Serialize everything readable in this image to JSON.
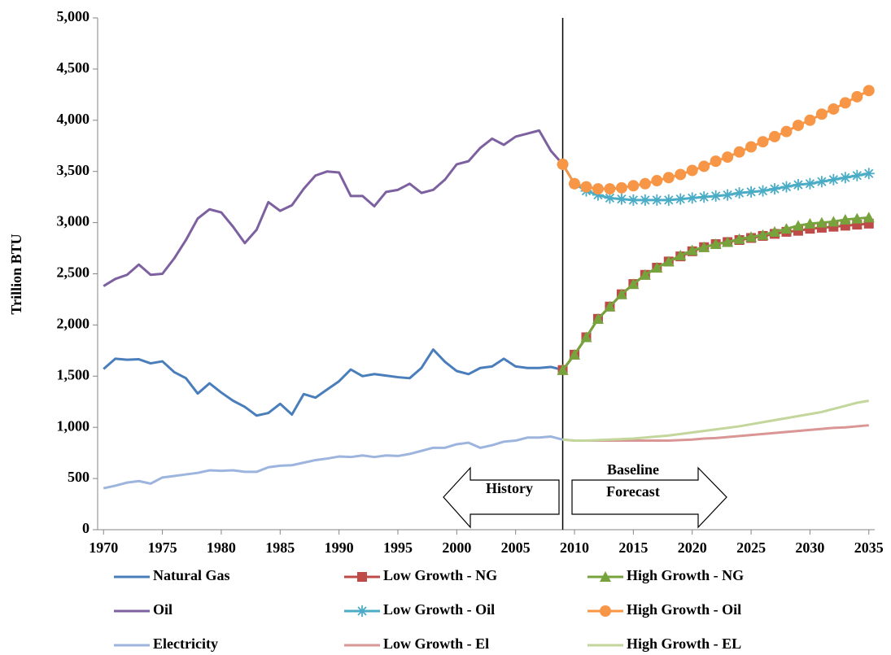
{
  "chart_data": {
    "type": "line",
    "y_label": "Trillion BTU",
    "xlim": [
      1969.5,
      2035.5
    ],
    "xticks": [
      1970,
      1975,
      1980,
      1985,
      1990,
      1995,
      2000,
      2005,
      2010,
      2015,
      2020,
      2025,
      2030,
      2035
    ],
    "ylim": [
      0,
      5000
    ],
    "yticks": [
      0,
      500,
      {
        "value": 1000,
        "label": "1,000"
      },
      {
        "value": 1500,
        "label": "1,500"
      },
      {
        "value": 2000,
        "label": "2,000"
      },
      {
        "value": 2500,
        "label": "2,500"
      },
      {
        "value": 3000,
        "label": "3,000"
      },
      {
        "value": 3500,
        "label": "3,500"
      },
      {
        "value": 4000,
        "label": "4,000"
      },
      {
        "value": 4500,
        "label": "4,500"
      },
      {
        "value": 5000,
        "label": "5,000"
      }
    ],
    "divider_x": 2009,
    "history_label": "History",
    "forecast_label": [
      "Baseline",
      "Forecast"
    ],
    "series": [
      {
        "name": "Natural Gas",
        "color": "#4a7ebb",
        "marker": "none",
        "x": [
          1970,
          1971,
          1972,
          1973,
          1974,
          1975,
          1976,
          1977,
          1978,
          1979,
          1980,
          1981,
          1982,
          1983,
          1984,
          1985,
          1986,
          1987,
          1988,
          1989,
          1990,
          1991,
          1992,
          1993,
          1994,
          1995,
          1996,
          1997,
          1998,
          1999,
          2000,
          2001,
          2002,
          2003,
          2004,
          2005,
          2006,
          2007,
          2008,
          2009
        ],
        "values": [
          1570,
          1670,
          1660,
          1665,
          1625,
          1645,
          1540,
          1480,
          1330,
          1430,
          1340,
          1260,
          1200,
          1115,
          1140,
          1230,
          1125,
          1325,
          1290,
          1370,
          1450,
          1565,
          1500,
          1520,
          1505,
          1490,
          1480,
          1580,
          1760,
          1640,
          1550,
          1520,
          1580,
          1595,
          1670,
          1595,
          1580,
          1580,
          1590,
          1560
        ]
      },
      {
        "name": "Low Growth - NG",
        "color": "#be4b48",
        "marker": "square",
        "x": [
          2009,
          2010,
          2011,
          2012,
          2013,
          2014,
          2015,
          2016,
          2017,
          2018,
          2019,
          2020,
          2021,
          2022,
          2023,
          2024,
          2025,
          2026,
          2027,
          2028,
          2029,
          2030,
          2031,
          2032,
          2033,
          2034,
          2035
        ],
        "values": [
          1560,
          1710,
          1880,
          2060,
          2180,
          2300,
          2400,
          2490,
          2560,
          2620,
          2670,
          2720,
          2760,
          2790,
          2810,
          2830,
          2850,
          2870,
          2890,
          2910,
          2920,
          2940,
          2950,
          2960,
          2970,
          2980,
          2990
        ]
      },
      {
        "name": "High Growth - NG",
        "color": "#77a33c",
        "marker": "triangle",
        "x": [
          2009,
          2010,
          2011,
          2012,
          2013,
          2014,
          2015,
          2016,
          2017,
          2018,
          2019,
          2020,
          2021,
          2022,
          2023,
          2024,
          2025,
          2026,
          2027,
          2028,
          2029,
          2030,
          2031,
          2032,
          2033,
          2034,
          2035
        ],
        "values": [
          1560,
          1710,
          1880,
          2060,
          2180,
          2300,
          2400,
          2490,
          2560,
          2620,
          2680,
          2730,
          2760,
          2790,
          2810,
          2840,
          2860,
          2880,
          2910,
          2940,
          2970,
          2990,
          3000,
          3010,
          3030,
          3040,
          3050
        ]
      },
      {
        "name": "Oil",
        "color": "#7d60a0",
        "marker": "none",
        "x": [
          1970,
          1971,
          1972,
          1973,
          1974,
          1975,
          1976,
          1977,
          1978,
          1979,
          1980,
          1981,
          1982,
          1983,
          1984,
          1985,
          1986,
          1987,
          1988,
          1989,
          1990,
          1991,
          1992,
          1993,
          1994,
          1995,
          1996,
          1997,
          1998,
          1999,
          2000,
          2001,
          2002,
          2003,
          2004,
          2005,
          2006,
          2007,
          2008,
          2009
        ],
        "values": [
          2380,
          2450,
          2490,
          2590,
          2490,
          2500,
          2650,
          2830,
          3040,
          3130,
          3100,
          2960,
          2800,
          2930,
          3200,
          3115,
          3170,
          3330,
          3460,
          3500,
          3490,
          3260,
          3260,
          3160,
          3300,
          3320,
          3380,
          3290,
          3320,
          3420,
          3570,
          3600,
          3730,
          3820,
          3760,
          3840,
          3870,
          3900,
          3700,
          3570
        ]
      },
      {
        "name": "Low Growth - Oil",
        "color": "#4bacc6",
        "marker": "asterisk",
        "x": [
          2009,
          2010,
          2011,
          2012,
          2013,
          2014,
          2015,
          2016,
          2017,
          2018,
          2019,
          2020,
          2021,
          2022,
          2023,
          2024,
          2025,
          2026,
          2027,
          2028,
          2029,
          2030,
          2031,
          2032,
          2033,
          2034,
          2035
        ],
        "values": [
          3570,
          3380,
          3310,
          3270,
          3240,
          3230,
          3220,
          3220,
          3220,
          3220,
          3230,
          3240,
          3250,
          3260,
          3270,
          3290,
          3300,
          3310,
          3330,
          3350,
          3370,
          3380,
          3400,
          3420,
          3440,
          3460,
          3480
        ]
      },
      {
        "name": "High Growth - Oil",
        "color": "#f79646",
        "marker": "circle",
        "x": [
          2009,
          2010,
          2011,
          2012,
          2013,
          2014,
          2015,
          2016,
          2017,
          2018,
          2019,
          2020,
          2021,
          2022,
          2023,
          2024,
          2025,
          2026,
          2027,
          2028,
          2029,
          2030,
          2031,
          2032,
          2033,
          2034,
          2035
        ],
        "values": [
          3570,
          3380,
          3350,
          3330,
          3330,
          3340,
          3360,
          3380,
          3410,
          3440,
          3470,
          3510,
          3550,
          3600,
          3640,
          3690,
          3740,
          3790,
          3840,
          3890,
          3950,
          4000,
          4060,
          4110,
          4170,
          4230,
          4290
        ]
      },
      {
        "name": "Electricity",
        "color": "#9db5de",
        "marker": "none",
        "x": [
          1970,
          1971,
          1972,
          1973,
          1974,
          1975,
          1976,
          1977,
          1978,
          1979,
          1980,
          1981,
          1982,
          1983,
          1984,
          1985,
          1986,
          1987,
          1988,
          1989,
          1990,
          1991,
          1992,
          1993,
          1994,
          1995,
          1996,
          1997,
          1998,
          1999,
          2000,
          2001,
          2002,
          2003,
          2004,
          2005,
          2006,
          2007,
          2008,
          2009
        ],
        "values": [
          405,
          430,
          460,
          475,
          450,
          510,
          525,
          540,
          555,
          580,
          575,
          580,
          565,
          565,
          610,
          625,
          630,
          655,
          680,
          695,
          715,
          710,
          725,
          710,
          725,
          720,
          740,
          770,
          800,
          800,
          835,
          850,
          800,
          825,
          860,
          870,
          900,
          900,
          910,
          880
        ]
      },
      {
        "name": "Low Growth - El",
        "color": "#d99694",
        "marker": "none",
        "x": [
          2009,
          2010,
          2011,
          2012,
          2013,
          2014,
          2015,
          2016,
          2017,
          2018,
          2019,
          2020,
          2021,
          2022,
          2023,
          2024,
          2025,
          2026,
          2027,
          2028,
          2029,
          2030,
          2031,
          2032,
          2033,
          2034,
          2035
        ],
        "values": [
          880,
          870,
          870,
          870,
          870,
          870,
          870,
          870,
          870,
          870,
          875,
          880,
          890,
          895,
          905,
          915,
          925,
          935,
          945,
          955,
          965,
          975,
          985,
          995,
          1000,
          1010,
          1020
        ]
      },
      {
        "name": "High Growth - EL",
        "color": "#c3d69b",
        "marker": "none",
        "x": [
          2009,
          2010,
          2011,
          2012,
          2013,
          2014,
          2015,
          2016,
          2017,
          2018,
          2019,
          2020,
          2021,
          2022,
          2023,
          2024,
          2025,
          2026,
          2027,
          2028,
          2029,
          2030,
          2031,
          2032,
          2033,
          2034,
          2035
        ],
        "values": [
          880,
          870,
          870,
          875,
          880,
          885,
          890,
          900,
          910,
          920,
          935,
          950,
          965,
          980,
          995,
          1010,
          1030,
          1050,
          1070,
          1090,
          1110,
          1130,
          1150,
          1180,
          1210,
          1240,
          1260
        ]
      }
    ]
  }
}
